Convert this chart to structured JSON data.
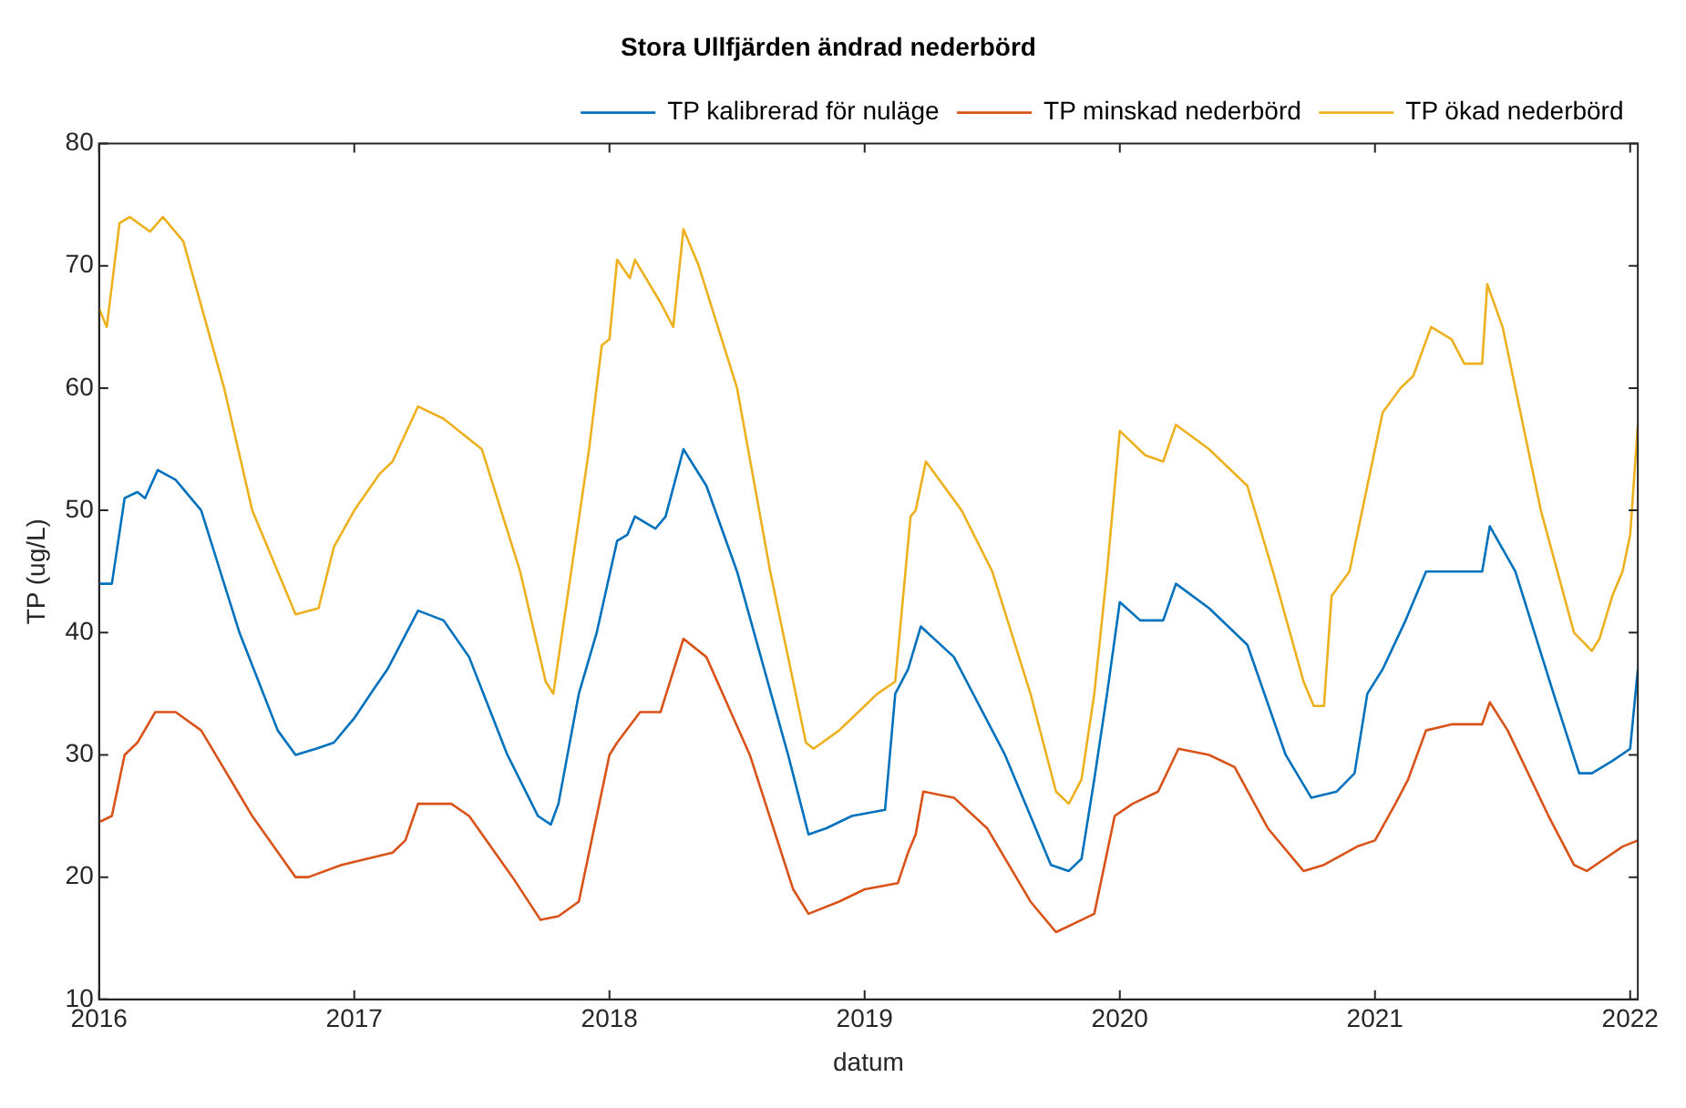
{
  "chart_data": {
    "type": "line",
    "title": "Stora Ullfjärden ändrad nederbörd",
    "xlabel": "datum",
    "ylabel": "TP (ug/L)",
    "xlim": [
      2016,
      2022.03
    ],
    "xticks": [
      2016,
      2017,
      2018,
      2019,
      2020,
      2021,
      2022
    ],
    "ylim": [
      10,
      80
    ],
    "yticks": [
      10,
      20,
      30,
      40,
      50,
      60,
      70,
      80
    ],
    "grid": false,
    "legend": "top right",
    "marker": "none",
    "line_style": "solid",
    "series": [
      {
        "name": "TP kalibrerad för nuläge",
        "color": "#0072bd",
        "x": [
          2016.0,
          2016.05,
          2016.1,
          2016.15,
          2016.18,
          2016.23,
          2016.3,
          2016.4,
          2016.55,
          2016.7,
          2016.77,
          2016.85,
          2016.92,
          2017.0,
          2017.08,
          2017.13,
          2017.25,
          2017.35,
          2017.45,
          2017.6,
          2017.72,
          2017.77,
          2017.8,
          2017.88,
          2017.95,
          2018.03,
          2018.07,
          2018.1,
          2018.18,
          2018.22,
          2018.29,
          2018.38,
          2018.5,
          2018.7,
          2018.78,
          2018.85,
          2018.95,
          2019.08,
          2019.12,
          2019.17,
          2019.22,
          2019.35,
          2019.55,
          2019.73,
          2019.8,
          2019.85,
          2019.9,
          2019.95,
          2020.0,
          2020.08,
          2020.17,
          2020.22,
          2020.35,
          2020.5,
          2020.65,
          2020.75,
          2020.85,
          2020.92,
          2020.97,
          2021.03,
          2021.12,
          2021.2,
          2021.3,
          2021.42,
          2021.45,
          2021.55,
          2021.7,
          2021.8,
          2021.85,
          2021.93,
          2022.0,
          2022.03
        ],
        "values": [
          44,
          44,
          51,
          51.5,
          51,
          53.3,
          52.5,
          50,
          40,
          32,
          30,
          30.5,
          31,
          33,
          35.5,
          37,
          41.8,
          41,
          38,
          30,
          25,
          24.3,
          26,
          35,
          40,
          47.5,
          48,
          49.5,
          48.5,
          49.5,
          55,
          52,
          45,
          30,
          23.5,
          24,
          25,
          25.5,
          35,
          37,
          40.5,
          38,
          30,
          21,
          20.5,
          21.5,
          28,
          35,
          42.5,
          41,
          41,
          44,
          42,
          39,
          30,
          26.5,
          27,
          28.5,
          35,
          37,
          41,
          45,
          45,
          45,
          48.7,
          45,
          35,
          28.5,
          28.5,
          29.5,
          30.5,
          37
        ]
      },
      {
        "name": "TP minskad nederbörd",
        "color": "#d95319",
        "x": [
          2016.0,
          2016.05,
          2016.1,
          2016.15,
          2016.22,
          2016.3,
          2016.4,
          2016.6,
          2016.77,
          2016.82,
          2016.95,
          2017.15,
          2017.2,
          2017.25,
          2017.38,
          2017.45,
          2017.62,
          2017.73,
          2017.8,
          2017.88,
          2017.95,
          2018.0,
          2018.03,
          2018.12,
          2018.2,
          2018.29,
          2018.38,
          2018.55,
          2018.72,
          2018.78,
          2018.9,
          2019.0,
          2019.13,
          2019.17,
          2019.2,
          2019.23,
          2019.35,
          2019.48,
          2019.65,
          2019.75,
          2019.85,
          2019.9,
          2019.98,
          2020.05,
          2020.15,
          2020.23,
          2020.35,
          2020.45,
          2020.58,
          2020.72,
          2020.8,
          2020.93,
          2021.0,
          2021.08,
          2021.13,
          2021.2,
          2021.3,
          2021.42,
          2021.45,
          2021.52,
          2021.68,
          2021.78,
          2021.83,
          2021.9,
          2021.97,
          2022.03
        ],
        "values": [
          24.5,
          25,
          30,
          31,
          33.5,
          33.5,
          32,
          25,
          20,
          20,
          21,
          22,
          23,
          26,
          26,
          25,
          20,
          16.5,
          16.8,
          18,
          25,
          30,
          31,
          33.5,
          33.5,
          39.5,
          38,
          30,
          19,
          17,
          18,
          19,
          19.5,
          22,
          23.5,
          27,
          26.5,
          24,
          18,
          15.5,
          16.5,
          17,
          25,
          26,
          27,
          30.5,
          30,
          29,
          24,
          20.5,
          21,
          22.5,
          23,
          26,
          28,
          32,
          32.5,
          32.5,
          34.3,
          32,
          25,
          21,
          20.5,
          21.5,
          22.5,
          23
        ]
      },
      {
        "name": "TP ökad nederbörd",
        "color": "#edb120",
        "x": [
          2016.0,
          2016.03,
          2016.08,
          2016.12,
          2016.2,
          2016.25,
          2016.33,
          2016.49,
          2016.6,
          2016.77,
          2016.86,
          2016.92,
          2017.0,
          2017.1,
          2017.15,
          2017.25,
          2017.35,
          2017.5,
          2017.65,
          2017.75,
          2017.78,
          2017.85,
          2017.92,
          2017.97,
          2018.0,
          2018.03,
          2018.08,
          2018.1,
          2018.2,
          2018.25,
          2018.29,
          2018.35,
          2018.5,
          2018.63,
          2018.77,
          2018.8,
          2018.9,
          2018.95,
          2019.05,
          2019.12,
          2019.18,
          2019.2,
          2019.24,
          2019.38,
          2019.5,
          2019.65,
          2019.75,
          2019.8,
          2019.85,
          2019.9,
          2019.95,
          2020.0,
          2020.1,
          2020.17,
          2020.22,
          2020.35,
          2020.5,
          2020.6,
          2020.72,
          2020.76,
          2020.8,
          2020.83,
          2020.9,
          2020.95,
          2021.03,
          2021.1,
          2021.15,
          2021.22,
          2021.3,
          2021.35,
          2021.42,
          2021.44,
          2021.5,
          2021.65,
          2021.78,
          2021.85,
          2021.88,
          2021.93,
          2021.97,
          2022.0,
          2022.03
        ],
        "values": [
          66.5,
          65,
          73.5,
          74,
          72.8,
          74,
          72,
          60,
          50,
          41.5,
          42,
          47,
          50,
          53,
          54,
          58.5,
          57.5,
          55,
          45,
          36,
          35,
          45,
          55,
          63.5,
          64,
          70.5,
          69,
          70.5,
          67,
          65,
          73,
          70,
          60,
          45,
          31,
          30.5,
          32,
          33,
          35,
          36,
          49.5,
          50,
          54,
          50,
          45,
          35,
          27,
          26,
          28,
          35,
          45,
          56.5,
          54.5,
          54,
          57,
          55,
          52,
          45,
          36,
          34,
          34,
          43,
          45,
          50,
          58,
          60,
          61,
          65,
          64,
          62,
          62,
          68.5,
          65,
          50,
          40,
          38.5,
          39.5,
          43,
          45,
          48,
          57
        ]
      }
    ]
  }
}
